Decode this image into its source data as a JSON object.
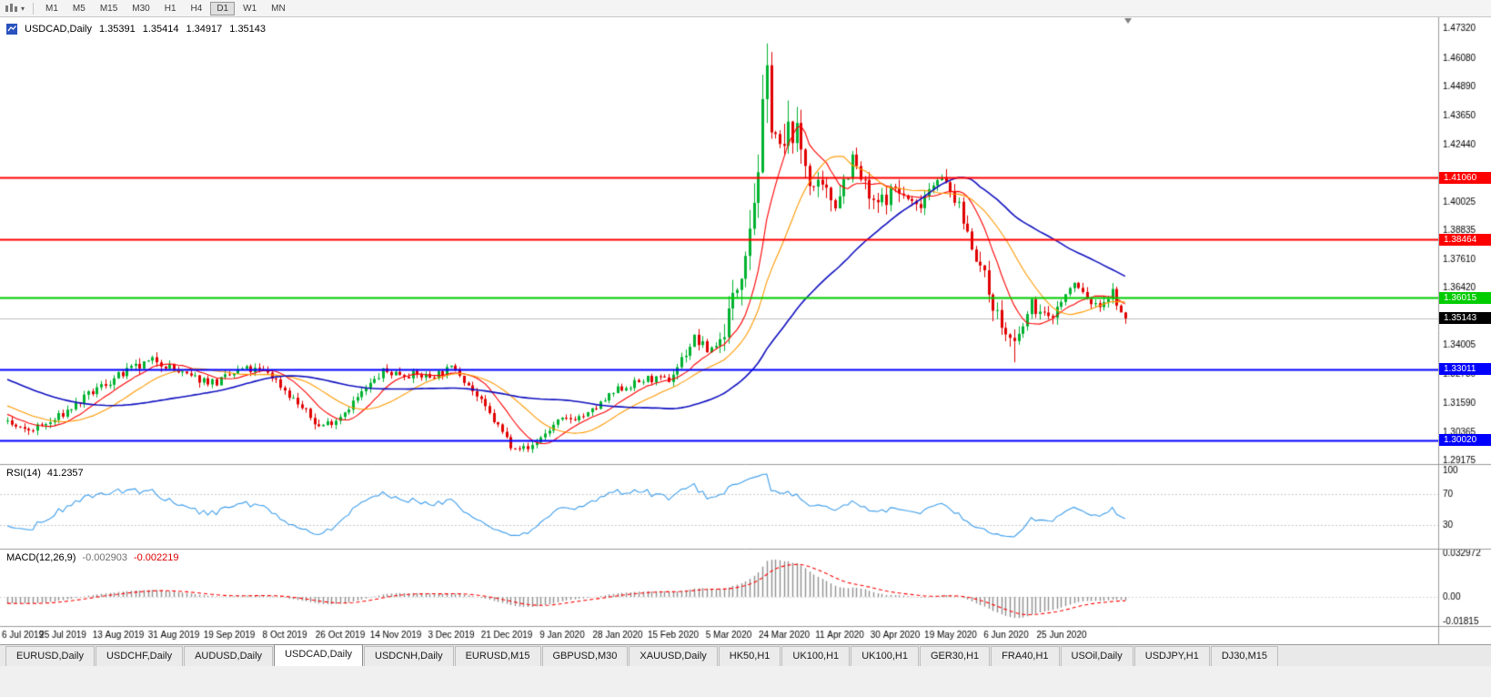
{
  "toolbar": {
    "icons": [
      {
        "name": "chart-type-icon"
      },
      {
        "name": "dropdown-caret-icon",
        "glyph": "▾"
      }
    ],
    "timeframes": [
      {
        "label": "M1",
        "active": false
      },
      {
        "label": "M5",
        "active": false
      },
      {
        "label": "M15",
        "active": false
      },
      {
        "label": "M30",
        "active": false
      },
      {
        "label": "H1",
        "active": false
      },
      {
        "label": "H4",
        "active": false
      },
      {
        "label": "D1",
        "active": true
      },
      {
        "label": "W1",
        "active": false
      },
      {
        "label": "MN",
        "active": false
      }
    ]
  },
  "chart": {
    "title": {
      "symbol": "USDCAD,Daily",
      "open": "1.35391",
      "high": "1.35414",
      "low": "1.34917",
      "close": "1.35143"
    },
    "colors": {
      "bg": "#ffffff",
      "up": "#00b230",
      "down": "#e00000",
      "ma_fast": "#ff0000",
      "ma_mid": "#ff9900",
      "ma_slow": "#1010c0",
      "rsi": "#3e9eeb",
      "rsi_level": "#c8c8c8",
      "macd_hist": "#909090",
      "macd_signal": "#ff0000",
      "current_line": "#c0c0c0",
      "axis_text": "#000000",
      "separator": "#9a9a9a"
    },
    "y_axis": {
      "ticks": [
        {
          "label": "1.47320",
          "value": 1.4732
        },
        {
          "label": "1.46080",
          "value": 1.4608
        },
        {
          "label": "1.44890",
          "value": 1.4489
        },
        {
          "label": "1.43650",
          "value": 1.4365
        },
        {
          "label": "1.42440",
          "value": 1.4244
        },
        {
          "label": "1.40025",
          "value": 1.40025
        },
        {
          "label": "1.38835",
          "value": 1.38835
        },
        {
          "label": "1.37610",
          "value": 1.3761
        },
        {
          "label": "1.36420",
          "value": 1.3642
        },
        {
          "label": "1.34005",
          "value": 1.34005
        },
        {
          "label": "1.32780",
          "value": 1.3278
        },
        {
          "label": "1.31590",
          "value": 1.3159
        },
        {
          "label": "1.30365",
          "value": 1.30365
        },
        {
          "label": "1.29175",
          "value": 1.29175
        }
      ]
    },
    "levels": [
      {
        "value": 1.4106,
        "label": "1.41060",
        "color": "#ff0000"
      },
      {
        "value": 1.38464,
        "label": "1.38464",
        "color": "#ff0000"
      },
      {
        "value": 1.36015,
        "label": "1.36015",
        "color": "#00cc00"
      },
      {
        "value": 1.33011,
        "label": "1.33011",
        "color": "#0000ff"
      },
      {
        "value": 1.3002,
        "label": "1.30020",
        "color": "#0000ff"
      }
    ],
    "current_price": {
      "value": 1.35143,
      "label": "1.35143",
      "color": "#000000"
    },
    "x_axis": {
      "labels": [
        "6 Jul 2019",
        "25 Jul 2019",
        "13 Aug 2019",
        "31 Aug 2019",
        "19 Sep 2019",
        "8 Oct 2019",
        "26 Oct 2019",
        "14 Nov 2019",
        "3 Dec 2019",
        "21 Dec 2019",
        "9 Jan 2020",
        "28 Jan 2020",
        "15 Feb 2020",
        "5 Mar 2020",
        "24 Mar 2020",
        "11 Apr 2020",
        "30 Apr 2020",
        "19 May 2020",
        "6 Jun 2020",
        "25 Jun 2020"
      ]
    }
  },
  "chart_data": {
    "type": "candlestick",
    "symbol": "USDCAD",
    "timeframe": "Daily",
    "ylim": [
      1.291,
      1.476
    ],
    "last_ohlc": {
      "open": 1.35391,
      "high": 1.35414,
      "low": 1.34917,
      "close": 1.35143
    },
    "warmup_segment": [
      50,
      1.345,
      1.3085,
      0.004
    ],
    "price_segments": [
      [
        5,
        1.3085,
        1.304,
        0.0032
      ],
      [
        6,
        1.304,
        1.3075,
        0.0034
      ],
      [
        12,
        1.3075,
        1.323,
        0.0036
      ],
      [
        6,
        1.323,
        1.329,
        0.004
      ],
      [
        7,
        1.329,
        1.334,
        0.0044
      ],
      [
        7,
        1.334,
        1.327,
        0.004
      ],
      [
        7,
        1.327,
        1.3245,
        0.0036
      ],
      [
        6,
        1.3245,
        1.33,
        0.0036
      ],
      [
        6,
        1.33,
        1.329,
        0.0036
      ],
      [
        12,
        1.329,
        1.306,
        0.0036
      ],
      [
        4,
        1.306,
        1.309,
        0.0032
      ],
      [
        11,
        1.309,
        1.329,
        0.0036
      ],
      [
        11,
        1.329,
        1.327,
        0.0034
      ],
      [
        6,
        1.327,
        1.331,
        0.0034
      ],
      [
        13,
        1.331,
        1.2985,
        0.0034
      ],
      [
        4,
        1.2985,
        1.2965,
        0.0026
      ],
      [
        7,
        1.2965,
        1.308,
        0.003
      ],
      [
        7,
        1.308,
        1.311,
        0.003
      ],
      [
        7,
        1.311,
        1.3215,
        0.0032
      ],
      [
        7,
        1.3215,
        1.326,
        0.0032
      ],
      [
        5,
        1.326,
        1.3255,
        0.003
      ],
      [
        6,
        1.3255,
        1.343,
        0.0046
      ],
      [
        3,
        1.343,
        1.338,
        0.0046
      ],
      [
        3,
        1.338,
        1.342,
        0.005
      ],
      [
        4,
        1.342,
        1.365,
        0.01
      ],
      [
        4,
        1.365,
        1.402,
        0.014
      ],
      [
        3,
        1.402,
        1.45,
        0.021
      ],
      [
        3,
        1.45,
        1.418,
        0.02
      ],
      [
        3,
        1.418,
        1.433,
        0.016
      ],
      [
        5,
        1.433,
        1.406,
        0.013
      ],
      [
        5,
        1.406,
        1.401,
        0.0095
      ],
      [
        4,
        1.401,
        1.418,
        0.0095
      ],
      [
        5,
        1.418,
        1.398,
        0.0085
      ],
      [
        5,
        1.398,
        1.406,
        0.0075
      ],
      [
        5,
        1.406,
        1.398,
        0.0065
      ],
      [
        5,
        1.398,
        1.412,
        0.0065
      ],
      [
        4,
        1.412,
        1.402,
        0.006
      ],
      [
        5,
        1.402,
        1.378,
        0.0065
      ],
      [
        6,
        1.378,
        1.348,
        0.0075
      ],
      [
        3,
        1.348,
        1.3395,
        0.0065
      ],
      [
        4,
        1.3395,
        1.357,
        0.0058
      ],
      [
        4,
        1.357,
        1.351,
        0.0052
      ],
      [
        6,
        1.351,
        1.366,
        0.0052
      ],
      [
        5,
        1.366,
        1.356,
        0.0048
      ],
      [
        4,
        1.356,
        1.362,
        0.0042
      ],
      [
        3,
        1.362,
        1.3514,
        0.0042
      ]
    ],
    "forced_extremes": [
      {
        "start": 172,
        "end": 182,
        "field": "high",
        "value": 1.4669
      },
      {
        "start": 112,
        "end": 124,
        "field": "low",
        "value": 1.2952
      },
      {
        "start": 230,
        "end": 238,
        "field": "low",
        "value": 1.333
      }
    ],
    "moving_averages": [
      {
        "name": "fast",
        "period": 10,
        "color_key": "ma_fast"
      },
      {
        "name": "mid",
        "period": 20,
        "color_key": "ma_mid"
      },
      {
        "name": "slow",
        "period": 50,
        "color_key": "ma_slow"
      }
    ],
    "indicators": {
      "rsi": {
        "label": "RSI(14)",
        "value_label": "41.2357",
        "period": 14,
        "levels": [
          70,
          30
        ],
        "axis_labels": [
          {
            "label": "100",
            "value": 100
          },
          {
            "label": "70",
            "value": 70
          },
          {
            "label": "30",
            "value": 30
          }
        ]
      },
      "macd": {
        "label": "MACD(12,26,9)",
        "value_label": "-0.002903",
        "signal_label": "-0.002219",
        "fast": 12,
        "slow": 26,
        "signal": 9,
        "axis_labels": [
          {
            "label": "0.032972",
            "value": 0.032972
          },
          {
            "label": "0.00",
            "value": 0
          },
          {
            "label": "-0.01815",
            "value": -0.018154
          }
        ]
      }
    }
  },
  "tabs": [
    {
      "label": "EURUSD,Daily",
      "active": false
    },
    {
      "label": "USDCHF,Daily",
      "active": false
    },
    {
      "label": "AUDUSD,Daily",
      "active": false
    },
    {
      "label": "USDCAD,Daily",
      "active": true
    },
    {
      "label": "USDCNH,Daily",
      "active": false
    },
    {
      "label": "EURUSD,M15",
      "active": false
    },
    {
      "label": "GBPUSD,M30",
      "active": false
    },
    {
      "label": "XAUUSD,Daily",
      "active": false
    },
    {
      "label": "HK50,H1",
      "active": false
    },
    {
      "label": "UK100,H1",
      "active": false
    },
    {
      "label": "UK100,H1",
      "active": false
    },
    {
      "label": "GER30,H1",
      "active": false
    },
    {
      "label": "FRA40,H1",
      "active": false
    },
    {
      "label": "USOil,Daily",
      "active": false
    },
    {
      "label": "USDJPY,H1",
      "active": false
    },
    {
      "label": "DJ30,M15",
      "active": false
    }
  ]
}
